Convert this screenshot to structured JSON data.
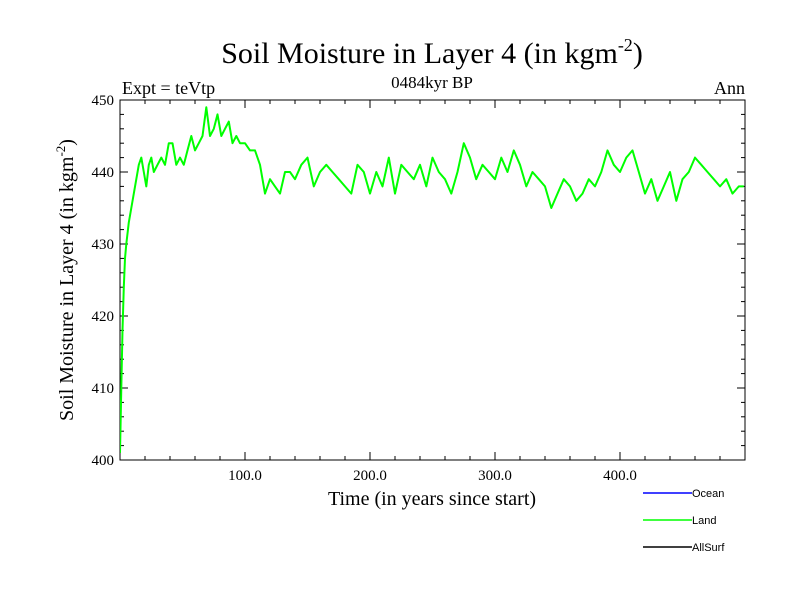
{
  "chart_data": {
    "type": "line",
    "title": "Soil Moisture in Layer 4 (in kgm",
    "title_sup": "-2",
    "title_close": ")",
    "subtitle_left": "Expt = teVtp",
    "subtitle_center": "0484kyr BP",
    "subtitle_right": "Ann",
    "xlabel": "Time (in years since start)",
    "ylabel": "Soil Moisture in Layer 4 (in kgm",
    "ylabel_sup": "-2",
    "ylabel_close": ")",
    "xlim": [
      0,
      500
    ],
    "ylim": [
      400,
      450
    ],
    "xticks": [
      {
        "value": 100,
        "label": "100.0"
      },
      {
        "value": 200,
        "label": "200.0"
      },
      {
        "value": 300,
        "label": "300.0"
      },
      {
        "value": 400,
        "label": "400.0"
      }
    ],
    "yticks": [
      {
        "value": 400,
        "label": "400"
      },
      {
        "value": 410,
        "label": "410"
      },
      {
        "value": 420,
        "label": "420"
      },
      {
        "value": 430,
        "label": "430"
      },
      {
        "value": 440,
        "label": "440"
      },
      {
        "value": 450,
        "label": "450"
      }
    ],
    "legend": [
      {
        "name": "Ocean",
        "color": "#0000ff"
      },
      {
        "name": "Land",
        "color": "#00ff00"
      },
      {
        "name": "AllSurf",
        "color": "#000000"
      }
    ],
    "series": [
      {
        "name": "Land",
        "color": "#00ff00",
        "x": [
          0,
          1,
          2,
          3,
          4,
          5,
          7,
          9,
          11,
          13,
          15,
          17,
          19,
          21,
          23,
          25,
          27,
          30,
          33,
          36,
          39,
          42,
          45,
          48,
          51,
          54,
          57,
          60,
          63,
          66,
          69,
          72,
          75,
          78,
          81,
          84,
          87,
          90,
          93,
          96,
          100,
          104,
          108,
          112,
          116,
          120,
          124,
          128,
          132,
          136,
          140,
          145,
          150,
          155,
          160,
          165,
          170,
          175,
          180,
          185,
          190,
          195,
          200,
          205,
          210,
          215,
          220,
          225,
          230,
          235,
          240,
          245,
          250,
          255,
          260,
          265,
          270,
          275,
          280,
          285,
          290,
          295,
          300,
          305,
          310,
          315,
          320,
          325,
          330,
          335,
          340,
          345,
          350,
          355,
          360,
          365,
          370,
          375,
          380,
          385,
          390,
          395,
          400,
          405,
          410,
          415,
          420,
          425,
          430,
          435,
          440,
          445,
          450,
          455,
          460,
          465,
          470,
          475,
          480,
          485,
          490,
          495,
          499
        ],
        "values": [
          401,
          410,
          418,
          424,
          428,
          430,
          433,
          435,
          437,
          439,
          441,
          442,
          440,
          438,
          441,
          442,
          440,
          441,
          442,
          441,
          444,
          444,
          441,
          442,
          441,
          443,
          445,
          443,
          444,
          445,
          449,
          445,
          446,
          448,
          445,
          446,
          447,
          444,
          445,
          444,
          444,
          443,
          443,
          441,
          437,
          439,
          438,
          437,
          440,
          440,
          439,
          441,
          442,
          438,
          440,
          441,
          440,
          439,
          438,
          437,
          441,
          440,
          437,
          440,
          438,
          442,
          437,
          441,
          440,
          439,
          441,
          438,
          442,
          440,
          439,
          437,
          440,
          444,
          442,
          439,
          441,
          440,
          439,
          442,
          440,
          443,
          441,
          438,
          440,
          439,
          438,
          435,
          437,
          439,
          438,
          436,
          437,
          439,
          438,
          440,
          443,
          441,
          440,
          442,
          443,
          440,
          437,
          439,
          436,
          438,
          440,
          436,
          439,
          440,
          442,
          441,
          440,
          439,
          438,
          439,
          437,
          438,
          438
        ]
      }
    ]
  }
}
